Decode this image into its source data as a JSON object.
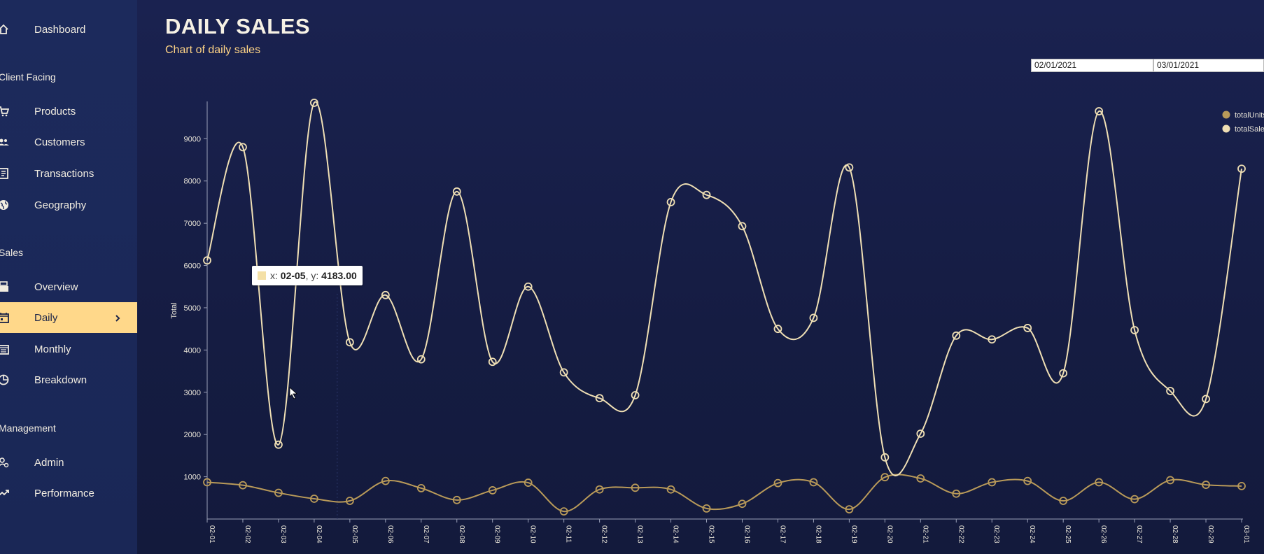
{
  "sidebar": {
    "items": [
      {
        "key": "dashboard",
        "label": "Dashboard",
        "icon": "home-icon"
      },
      {
        "key": "products",
        "label": "Products",
        "icon": "cart-icon"
      },
      {
        "key": "customers",
        "label": "Customers",
        "icon": "customers-icon"
      },
      {
        "key": "transactions",
        "label": "Transactions",
        "icon": "receipt-icon"
      },
      {
        "key": "geography",
        "label": "Geography",
        "icon": "globe-icon"
      },
      {
        "key": "overview",
        "label": "Overview",
        "icon": "point-of-sale-icon"
      },
      {
        "key": "daily",
        "label": "Daily",
        "icon": "calendar-today-icon"
      },
      {
        "key": "monthly",
        "label": "Monthly",
        "icon": "calendar-month-icon"
      },
      {
        "key": "breakdown",
        "label": "Breakdown",
        "icon": "pie-chart-icon"
      },
      {
        "key": "admin",
        "label": "Admin",
        "icon": "admin-icon"
      },
      {
        "key": "performance",
        "label": "Performance",
        "icon": "trending-up-icon"
      }
    ],
    "sections": {
      "client_facing": "Client Facing",
      "sales": "Sales",
      "management": "Management"
    },
    "active": "daily",
    "active_color": "#ffd88a"
  },
  "header": {
    "title": "DAILY SALES",
    "subtitle": "Chart of daily sales"
  },
  "date_range": {
    "start": "02/01/2021",
    "end": "03/01/2021"
  },
  "tooltip": {
    "x_prefix": "x: ",
    "x_value": "02-05",
    "y_prefix": ", y: ",
    "y_value": "4183.00"
  },
  "chart_data": {
    "type": "line",
    "ylabel": "Total",
    "ylim": [
      0,
      9800
    ],
    "yticks": [
      1000,
      2000,
      3000,
      4000,
      5000,
      6000,
      7000,
      8000,
      9000
    ],
    "x": [
      "02-01",
      "02-02",
      "02-03",
      "02-04",
      "02-05",
      "02-06",
      "02-07",
      "02-08",
      "02-09",
      "02-10",
      "02-11",
      "02-12",
      "02-13",
      "02-14",
      "02-15",
      "02-16",
      "02-17",
      "02-18",
      "02-19",
      "02-20",
      "02-21",
      "02-22",
      "02-23",
      "02-24",
      "02-25",
      "02-26",
      "02-27",
      "02-28",
      "02-29",
      "03-01"
    ],
    "series": [
      {
        "name": "totalUnits",
        "color": "#b99a59",
        "values": [
          870,
          800,
          620,
          480,
          430,
          900,
          730,
          450,
          680,
          860,
          180,
          700,
          740,
          700,
          250,
          360,
          850,
          870,
          230,
          990,
          960,
          600,
          870,
          900,
          430,
          870,
          470,
          920,
          810,
          780
        ]
      },
      {
        "name": "totalSales",
        "color": "#efdfb4",
        "values": [
          6120,
          8800,
          1760,
          9850,
          4183,
          5300,
          3780,
          7750,
          3720,
          5500,
          3470,
          2860,
          2930,
          7500,
          7670,
          6930,
          4500,
          4760,
          8320,
          1460,
          2020,
          4340,
          4250,
          4520,
          3450,
          9650,
          4470,
          3030,
          2840,
          8290
        ]
      }
    ],
    "legend_position": "top-right",
    "grid": false
  }
}
